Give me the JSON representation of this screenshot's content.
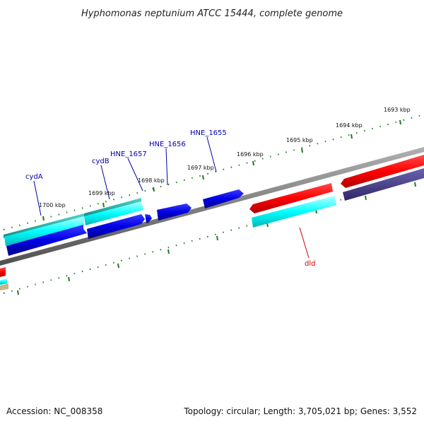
{
  "title": "Hyphomonas neptunium ATCC 15444, complete genome",
  "footer": {
    "accession": "Accession: NC_008358",
    "summary": "Topology: circular; Length: 3,705,021 bp; Genes: 3,552"
  },
  "colors": {
    "backbone": "#808080",
    "ticks": "#1f7a1f",
    "cds_forward": "#0000e6",
    "cds_reverse": "#ff0000",
    "cyan_feature": "#00ffff",
    "teal_feature": "#1ab3a6",
    "slate_feature": "#4b3f8f",
    "tan_feature": "#c8b48a",
    "label_blue": "#0000aa",
    "label_red": "#cc0000"
  },
  "ticks": {
    "outer": [
      "1700 kbp",
      "1699 kbp",
      "1698 kbp",
      "1697 kbp",
      "1696 kbp",
      "1695 kbp",
      "1694 kbp",
      "1693 kbp"
    ]
  },
  "genes": {
    "cydA": "cydA",
    "cydB": "cydB",
    "hne1657": "HNE_1657",
    "hne1656": "HNE_1656",
    "hne1655": "HNE_1655",
    "dld": "dld"
  }
}
